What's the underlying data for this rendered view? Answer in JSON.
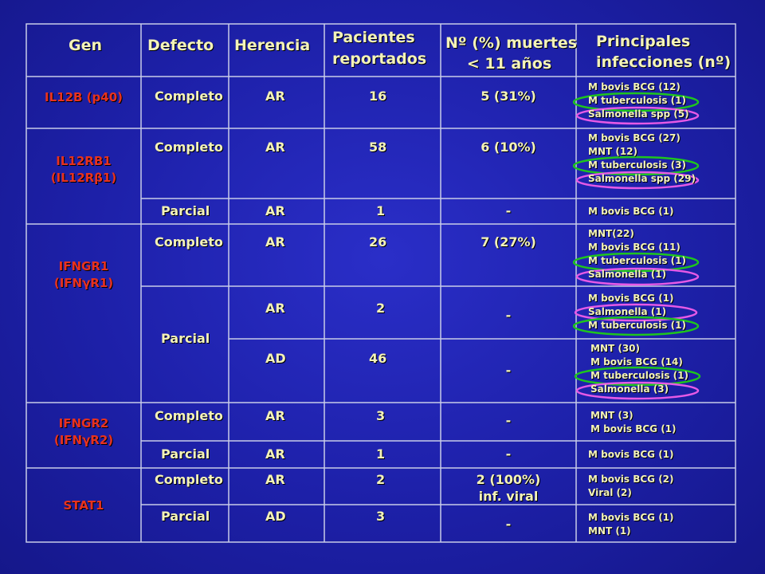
{
  "headers": {
    "gen": "Gen",
    "defecto": "Defecto",
    "herencia": "Herencia",
    "pacientes_1": "Pacientes",
    "pacientes_2": "reportados",
    "muertes_1": "Nº (%) muertes",
    "muertes_2": "< 11 años",
    "infecciones_1": "Principales",
    "infecciones_2": "infecciones (nº)"
  },
  "genes": {
    "il12b": "IL12B (p40)",
    "il12rb1_1": "IL12RB1",
    "il12rb1_2": "(IL12Rβ1)",
    "ifngr1_1": "IFNGR1",
    "ifngr1_2": "(IFNγR1)",
    "ifngr2_1": "IFNGR2",
    "ifngr2_2": "(IFNγR2)",
    "stat1": "STAT1"
  },
  "rows": [
    {
      "defecto": "Completo",
      "herencia": "AR",
      "pacientes": "16",
      "muertes": "5 (31%)",
      "infecciones": [
        "M bovis BCG (12)",
        "M tuberculosis (1)",
        "Salmonella spp (5)"
      ]
    },
    {
      "defecto": "Completo",
      "herencia": "AR",
      "pacientes": "58",
      "muertes": "6 (10%)",
      "infecciones": [
        "M bovis BCG (27)",
        "MNT (12)",
        "M tuberculosis (3)",
        "Salmonella spp (29)"
      ]
    },
    {
      "defecto": "Parcial",
      "herencia": "AR",
      "pacientes": "1",
      "muertes": "-",
      "infecciones": [
        "M bovis BCG (1)"
      ]
    },
    {
      "defecto": "Completo",
      "herencia": "AR",
      "pacientes": "26",
      "muertes": "7 (27%)",
      "infecciones": [
        "MNT(22)",
        "M bovis BCG (11)",
        "M tuberculosis (1)",
        "Salmonella (1)"
      ]
    },
    {
      "defecto": "Parcial",
      "herencia": "AR",
      "pacientes": "2",
      "muertes": "-",
      "infecciones": [
        "M bovis BCG (1)",
        "Salmonella (1)",
        "M tuberculosis (1)"
      ]
    },
    {
      "defecto": "",
      "herencia": "AD",
      "pacientes": "46",
      "muertes": "-",
      "infecciones": [
        "MNT (30)",
        "M bovis BCG (14)",
        "M tuberculosis (1)",
        "Salmonella (3)"
      ]
    },
    {
      "defecto": "Completo",
      "herencia": "AR",
      "pacientes": "3",
      "muertes": "-",
      "infecciones": [
        "MNT (3)",
        "M bovis BCG (1)"
      ]
    },
    {
      "defecto": "Parcial",
      "herencia": "AR",
      "pacientes": "1",
      "muertes": "-",
      "infecciones": [
        "M bovis BCG (1)"
      ]
    },
    {
      "defecto": "Completo",
      "herencia": "AR",
      "pacientes": "2",
      "muertes_1": "2 (100%)",
      "muertes_2": "inf. viral",
      "infecciones": [
        "M bovis BCG (2)",
        "Viral (2)"
      ]
    },
    {
      "defecto": "Parcial",
      "herencia": "AD",
      "pacientes": "3",
      "muertes": "-",
      "infecciones": [
        "M bovis BCG (1)",
        "MNT (1)"
      ]
    }
  ],
  "colors": {
    "background": "#1d20a8",
    "text": "#f4f3b8",
    "gene_text": "#e8321e",
    "highlight_green": "#1ec51e",
    "highlight_magenta": "#e65ae6"
  }
}
